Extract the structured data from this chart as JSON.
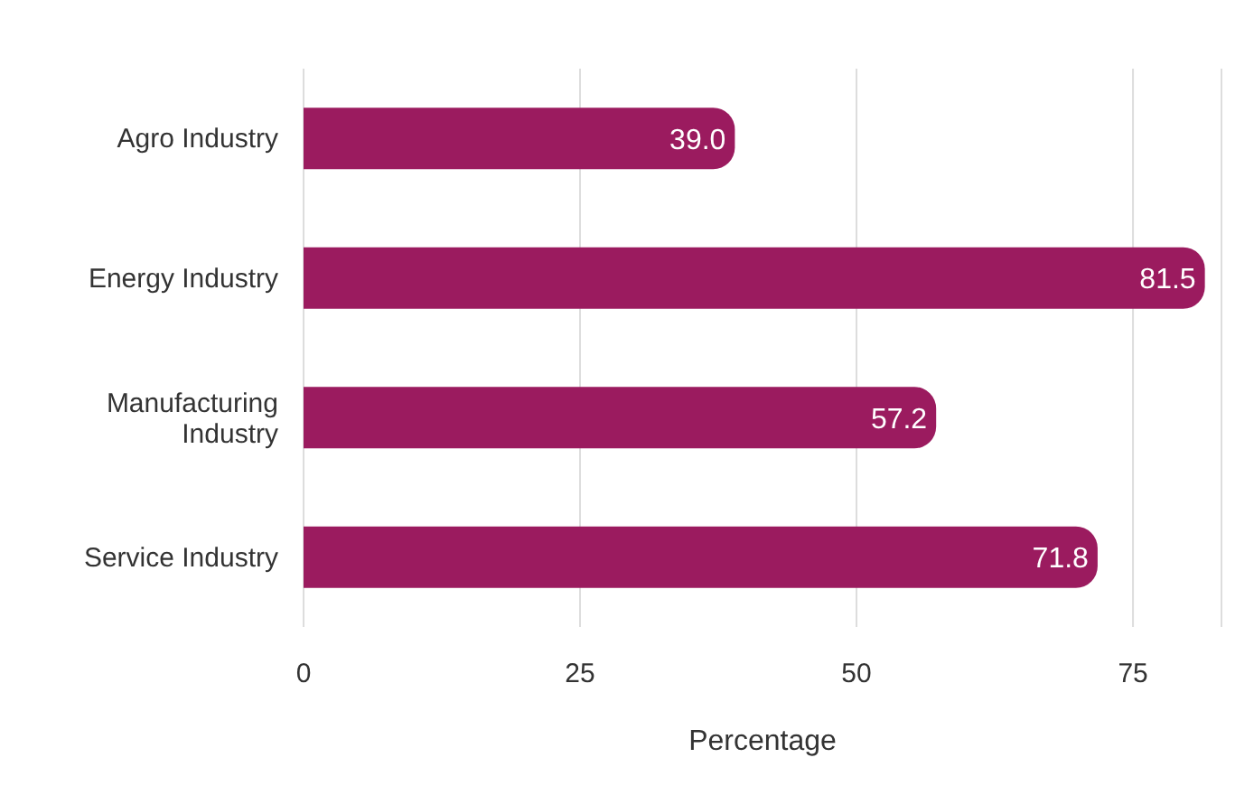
{
  "chart_data": {
    "type": "bar",
    "orientation": "horizontal",
    "xlabel": "Percentage",
    "categories": [
      "Agro Industry",
      "Energy Industry",
      "Manufacturing Industry",
      "Service Industry"
    ],
    "values": [
      39.0,
      81.5,
      57.2,
      71.8
    ],
    "color": "#9b1b5f",
    "xlim": [
      0,
      83
    ],
    "xticks": [
      0,
      25,
      50,
      75
    ],
    "grid": "x",
    "value_labels": [
      "39.0",
      "81.5",
      "57.2",
      "71.8"
    ]
  }
}
